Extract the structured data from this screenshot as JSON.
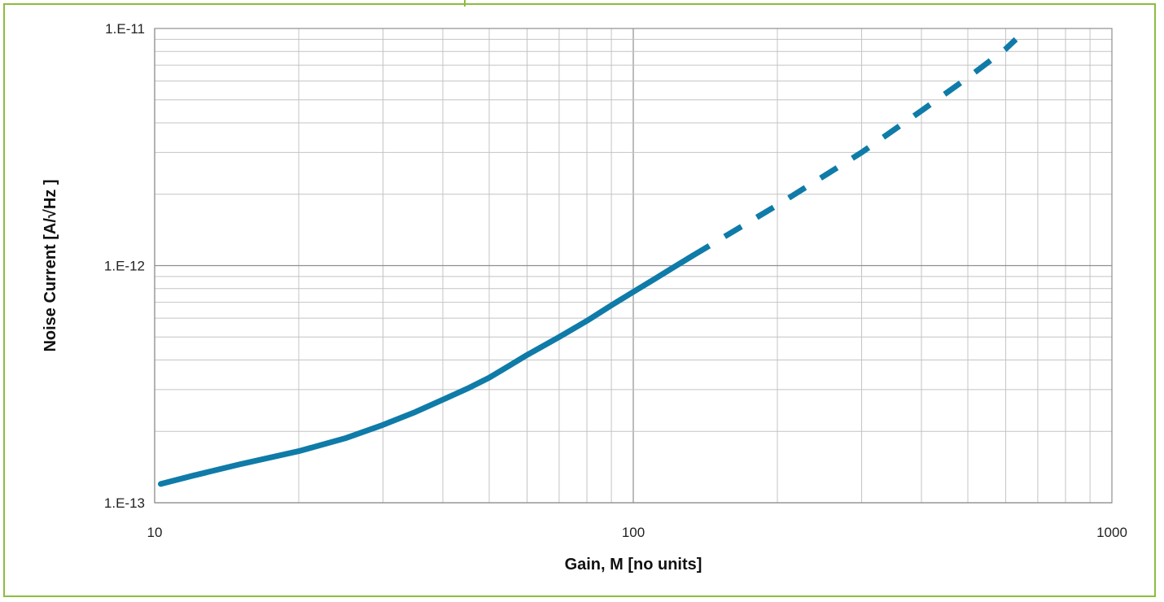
{
  "chart_data": {
    "type": "line",
    "title": "",
    "xlabel": "Gain, M [no units]",
    "ylabel": "Noise Current [A/√Hz ]",
    "x_scale": "log",
    "y_scale": "log",
    "xlim": [
      10,
      1000
    ],
    "ylim": [
      1e-13,
      1e-11
    ],
    "x_ticks": [
      {
        "value": 10,
        "label": "10"
      },
      {
        "value": 100,
        "label": "100"
      },
      {
        "value": 1000,
        "label": "1000"
      }
    ],
    "y_ticks": [
      {
        "value": 1e-11,
        "label": "1.E-11"
      },
      {
        "value": 1e-12,
        "label": "1.E-12"
      },
      {
        "value": 1e-13,
        "label": "1.E-13"
      }
    ],
    "grid": true,
    "legend": "none",
    "series": [
      {
        "style": "solid",
        "color": "#0f7ba8",
        "x": [
          10.3,
          12,
          15,
          20,
          25,
          30,
          35,
          40,
          45,
          50,
          55,
          60,
          70,
          80,
          90,
          100,
          110,
          120,
          133
        ],
        "y": [
          1.2e-13,
          1.3e-13,
          1.45e-13,
          1.65e-13,
          1.87e-13,
          2.13e-13,
          2.41e-13,
          2.72e-13,
          3.03e-13,
          3.37e-13,
          3.78e-13,
          4.2e-13,
          5e-13,
          5.85e-13,
          6.8e-13,
          7.75e-13,
          8.7e-13,
          9.7e-13,
          1.1e-12
        ]
      },
      {
        "style": "dashed",
        "color": "#0f7ba8",
        "x": [
          133,
          200,
          300,
          400,
          500,
          600,
          630
        ],
        "y": [
          1.1e-12,
          1.8e-12,
          3e-12,
          4.5e-12,
          6.2e-12,
          8.2e-12,
          9e-12
        ]
      }
    ]
  },
  "colors": {
    "frame": "#8cbd3f",
    "grid_major": "#8f8f8f",
    "grid_minor": "#c4c4c4",
    "series": "#0f7ba8"
  }
}
